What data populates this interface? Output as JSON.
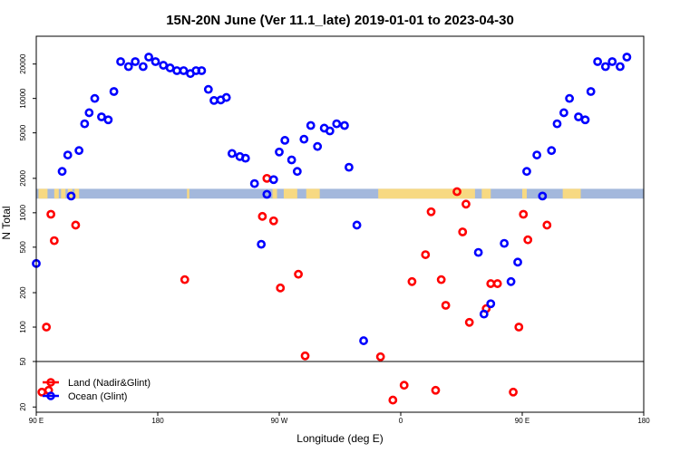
{
  "chart_data": {
    "type": "scatter",
    "title": "15N-20N June (Ver 11.1_late)   2019-01-01 to 2023-04-30",
    "xlabel": "Longitude (deg E)",
    "ylabel": "N Total",
    "x_scale": "linear",
    "y_scale": "log",
    "xlim": [
      -90,
      180
    ],
    "ylim": [
      18,
      35000
    ],
    "x_ticks": [
      {
        "value": -90,
        "label": "90 E"
      },
      {
        "value": -36,
        "label": "180"
      },
      {
        "value": 18,
        "label": "90 W"
      },
      {
        "value": 72,
        "label": "0"
      },
      {
        "value": 126,
        "label": "90 E"
      },
      {
        "value": 180,
        "label": "180"
      }
    ],
    "y_ticks": [
      {
        "value": 20,
        "label": "20"
      },
      {
        "value": 50,
        "label": "50"
      },
      {
        "value": 100,
        "label": "100"
      },
      {
        "value": 200,
        "label": "200"
      },
      {
        "value": 500,
        "label": "500"
      },
      {
        "value": 1000,
        "label": "1000"
      },
      {
        "value": 2000,
        "label": "2000"
      },
      {
        "value": 5000,
        "label": "5000"
      },
      {
        "value": 10000,
        "label": "10000"
      },
      {
        "value": 20000,
        "label": "20000"
      }
    ],
    "reference_line": {
      "y": 50
    },
    "map_strip": {
      "y_range": [
        1330,
        1620
      ],
      "ocean_color": "#a3b8dc",
      "land_color": "#f7d982"
    },
    "land_spans": [
      [
        -89,
        -85
      ],
      [
        -82,
        -80
      ],
      [
        -79,
        -77
      ],
      [
        -76,
        -74
      ],
      [
        -73,
        -71
      ],
      [
        -23,
        -22
      ],
      [
        15,
        17
      ],
      [
        20,
        26
      ],
      [
        30,
        36
      ],
      [
        62,
        105
      ],
      [
        108,
        112
      ],
      [
        126,
        128
      ],
      [
        144,
        152
      ]
    ],
    "series": [
      {
        "name": "Land (Nadir&Glint)",
        "color": "#ff0000",
        "points": [
          [
            -87.5,
            27
          ],
          [
            -85.5,
            100
          ],
          [
            -84.5,
            28
          ],
          [
            -83.5,
            970
          ],
          [
            -82,
            570
          ],
          [
            -72.5,
            780
          ],
          [
            -24,
            260
          ],
          [
            10.5,
            930
          ],
          [
            12.5,
            2000
          ],
          [
            15.5,
            850
          ],
          [
            18.5,
            220
          ],
          [
            26.5,
            290
          ],
          [
            29.5,
            56
          ],
          [
            63,
            55
          ],
          [
            68.5,
            23
          ],
          [
            73.5,
            31
          ],
          [
            77,
            250
          ],
          [
            83,
            430
          ],
          [
            85.5,
            1020
          ],
          [
            87.5,
            28
          ],
          [
            90,
            260
          ],
          [
            92,
            155
          ],
          [
            97,
            1530
          ],
          [
            99.5,
            680
          ],
          [
            101,
            1190
          ],
          [
            102.5,
            110
          ],
          [
            110,
            145
          ],
          [
            112,
            240
          ],
          [
            115,
            240
          ],
          [
            122,
            27
          ],
          [
            124.5,
            100
          ],
          [
            126.5,
            970
          ],
          [
            128.5,
            580
          ],
          [
            137,
            780
          ]
        ]
      },
      {
        "name": "Ocean (Glint)",
        "color": "#0000ff",
        "points": [
          [
            -90,
            360
          ],
          [
            -78.5,
            2300
          ],
          [
            -76,
            3200
          ],
          [
            -74.5,
            1400
          ],
          [
            -71,
            3500
          ],
          [
            -68.5,
            6000
          ],
          [
            -66.5,
            7500
          ],
          [
            -64,
            10000
          ],
          [
            -61,
            6900
          ],
          [
            -58,
            6500
          ],
          [
            -55.5,
            11500
          ],
          [
            -52.5,
            21000
          ],
          [
            -49,
            19000
          ],
          [
            -46,
            21000
          ],
          [
            -42.5,
            19000
          ],
          [
            -40,
            23000
          ],
          [
            -37,
            21000
          ],
          [
            -33.5,
            19500
          ],
          [
            -30.5,
            18500
          ],
          [
            -27.5,
            17500
          ],
          [
            -24.5,
            17500
          ],
          [
            -21.5,
            16500
          ],
          [
            -19,
            17500
          ],
          [
            -16.5,
            17500
          ],
          [
            -13.5,
            12000
          ],
          [
            -11,
            9600
          ],
          [
            -8,
            9700
          ],
          [
            -5.5,
            10200
          ],
          [
            -3,
            3300
          ],
          [
            0.5,
            3100
          ],
          [
            3,
            3000
          ],
          [
            7,
            1800
          ],
          [
            10,
            530
          ],
          [
            12.5,
            1450
          ],
          [
            15.5,
            1950
          ],
          [
            18,
            3400
          ],
          [
            20.5,
            4300
          ],
          [
            23.5,
            2900
          ],
          [
            26,
            2300
          ],
          [
            29,
            4400
          ],
          [
            32,
            5800
          ],
          [
            35,
            3800
          ],
          [
            38,
            5500
          ],
          [
            40.5,
            5200
          ],
          [
            43.5,
            6000
          ],
          [
            47,
            5800
          ],
          [
            49,
            2500
          ],
          [
            52.5,
            780
          ],
          [
            55.5,
            76
          ],
          [
            106.5,
            450
          ],
          [
            109,
            130
          ],
          [
            112,
            160
          ],
          [
            118,
            540
          ],
          [
            121,
            250
          ],
          [
            124,
            370
          ],
          [
            128,
            2300
          ],
          [
            132.5,
            3200
          ],
          [
            135,
            1400
          ],
          [
            139,
            3500
          ],
          [
            141.5,
            6000
          ],
          [
            144.5,
            7500
          ],
          [
            147,
            10000
          ],
          [
            151,
            6900
          ],
          [
            154,
            6500
          ],
          [
            156.5,
            11500
          ],
          [
            159.5,
            21000
          ],
          [
            163,
            19000
          ],
          [
            166,
            21000
          ],
          [
            169.5,
            19000
          ],
          [
            172.5,
            23000
          ]
        ]
      }
    ],
    "legend": {
      "position": "bottom-left"
    }
  }
}
